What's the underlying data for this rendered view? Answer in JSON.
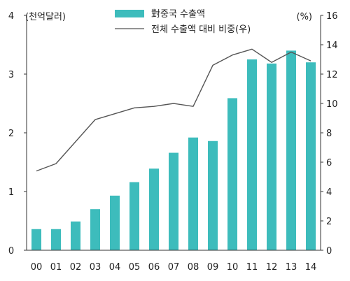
{
  "chart_data": {
    "type": "bar",
    "categories": [
      "00",
      "01",
      "02",
      "03",
      "04",
      "05",
      "06",
      "07",
      "08",
      "09",
      "10",
      "11",
      "12",
      "13",
      "14"
    ],
    "series": [
      {
        "name": "對중국 수출액",
        "type": "bar",
        "axis": "left",
        "color": "#3dbcbc",
        "values": [
          0.36,
          0.36,
          0.49,
          0.7,
          0.93,
          1.16,
          1.39,
          1.66,
          1.92,
          1.86,
          2.59,
          3.25,
          3.18,
          3.4,
          3.2
        ]
      },
      {
        "name": "전체 수출액 대비 비중(우)",
        "type": "line",
        "axis": "right",
        "color": "#555555",
        "values": [
          5.4,
          5.9,
          7.4,
          8.9,
          9.3,
          9.7,
          9.8,
          10.0,
          9.8,
          12.6,
          13.3,
          13.7,
          12.8,
          13.5,
          12.9
        ]
      }
    ],
    "left_axis": {
      "unit_label": "(천억달러)",
      "ylim": [
        0,
        4
      ],
      "ticks": [
        "0",
        "1",
        "2",
        "3",
        "4"
      ]
    },
    "right_axis": {
      "unit_label": "(%)",
      "ylim": [
        0,
        16
      ],
      "ticks": [
        "0",
        "2",
        "4",
        "6",
        "8",
        "10",
        "12",
        "14",
        "16"
      ]
    },
    "legend_placement": "top-center",
    "grid": false
  }
}
